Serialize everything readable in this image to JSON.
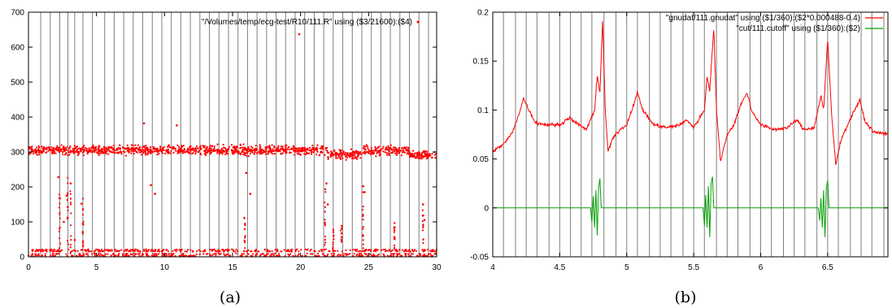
{
  "chart_data": [
    {
      "type": "scatter",
      "caption": "(a)",
      "xlim": [
        0,
        30
      ],
      "ylim": [
        0,
        700
      ],
      "x_ticks": [
        0,
        5,
        10,
        15,
        20,
        25,
        30
      ],
      "y_ticks": [
        0,
        100,
        200,
        300,
        400,
        500,
        600,
        700
      ],
      "grid": false,
      "legend_position": "top-right",
      "colors": {
        "points": "#ff0000",
        "marker_lines": "#7f7f7f"
      },
      "series": [
        {
          "name": "\"/Volumes/temp/ecg-test/R10/111.R\" using ($3/21600):($4)",
          "main_band": {
            "x_range": [
              0,
              30
            ],
            "center": 305,
            "spread": 14
          },
          "baseline_band": {
            "x_range": [
              0,
              30
            ],
            "values": [
              3,
              8,
              16,
              20
            ]
          },
          "outliers": [
            {
              "x": 19.9,
              "y": 637
            },
            {
              "x": 8.5,
              "y": 382
            },
            {
              "x": 10.9,
              "y": 376
            },
            {
              "x": 2.2,
              "y": 228
            },
            {
              "x": 2.6,
              "y": 100
            },
            {
              "x": 2.8,
              "y": 175
            },
            {
              "x": 3.1,
              "y": 210
            },
            {
              "x": 3.4,
              "y": 48
            },
            {
              "x": 3.9,
              "y": 152
            },
            {
              "x": 4.0,
              "y": 95
            },
            {
              "x": 9.0,
              "y": 205
            },
            {
              "x": 9.3,
              "y": 180
            },
            {
              "x": 16.0,
              "y": 240
            },
            {
              "x": 16.3,
              "y": 180
            },
            {
              "x": 21.9,
              "y": 210
            },
            {
              "x": 22.0,
              "y": 150
            },
            {
              "x": 24.6,
              "y": 202
            },
            {
              "x": 24.7,
              "y": 185
            },
            {
              "x": 26.9,
              "y": 55
            },
            {
              "x": 29.0,
              "y": 150
            },
            {
              "x": 29.1,
              "y": 105
            }
          ],
          "columns": [
            {
              "x": 2.3,
              "y_range": [
                20,
                200
              ]
            },
            {
              "x": 2.9,
              "y_range": [
                10,
                230
              ]
            },
            {
              "x": 3.1,
              "y_range": [
                10,
                190
              ]
            },
            {
              "x": 4.0,
              "y_range": [
                10,
                170
              ]
            },
            {
              "x": 15.9,
              "y_range": [
                15,
                120
              ]
            },
            {
              "x": 21.8,
              "y_range": [
                20,
                220
              ]
            },
            {
              "x": 22.4,
              "y_range": [
                15,
                110
              ]
            },
            {
              "x": 23.0,
              "y_range": [
                20,
                100
              ]
            },
            {
              "x": 24.6,
              "y_range": [
                20,
                210
              ]
            },
            {
              "x": 26.9,
              "y_range": [
                15,
                110
              ]
            },
            {
              "x": 29.0,
              "y_range": [
                10,
                140
              ]
            }
          ]
        }
      ],
      "vertical_markers": [
        0.9,
        1.6,
        2.3,
        2.9,
        3.4,
        4.0,
        4.7,
        5.6,
        6.3,
        7.0,
        7.7,
        8.4,
        9.1,
        9.8,
        10.5,
        11.2,
        11.9,
        12.6,
        13.3,
        14.0,
        14.7,
        15.4,
        16.1,
        16.8,
        17.5,
        18.2,
        18.9,
        19.6,
        20.3,
        21.0,
        21.7,
        22.4,
        23.1,
        23.8,
        24.5,
        25.2,
        25.9,
        26.6,
        27.3,
        28.0,
        28.7,
        29.4
      ]
    },
    {
      "type": "line",
      "caption": "(b)",
      "xlim": [
        4,
        6.95
      ],
      "ylim": [
        -0.05,
        0.2
      ],
      "x_ticks": [
        4,
        4.5,
        5,
        5.5,
        6,
        6.5
      ],
      "y_ticks": [
        -0.05,
        0,
        0.05,
        0.1,
        0.15,
        0.2
      ],
      "grid": false,
      "legend_position": "top-right",
      "series": [
        {
          "name": "\"gnudat/111.gnudat\" using ($1/360):($2*0.000488-0.4)",
          "color": "#ff0000",
          "key_points": [
            [
              4.0,
              0.058
            ],
            [
              4.05,
              0.062
            ],
            [
              4.1,
              0.068
            ],
            [
              4.15,
              0.078
            ],
            [
              4.2,
              0.098
            ],
            [
              4.23,
              0.112
            ],
            [
              4.27,
              0.1
            ],
            [
              4.32,
              0.087
            ],
            [
              4.4,
              0.085
            ],
            [
              4.5,
              0.085
            ],
            [
              4.57,
              0.092
            ],
            [
              4.62,
              0.087
            ],
            [
              4.7,
              0.08
            ],
            [
              4.76,
              0.1
            ],
            [
              4.78,
              0.135
            ],
            [
              4.8,
              0.118
            ],
            [
              4.82,
              0.192
            ],
            [
              4.84,
              0.1
            ],
            [
              4.86,
              0.058
            ],
            [
              4.9,
              0.072
            ],
            [
              4.95,
              0.08
            ],
            [
              5.0,
              0.085
            ],
            [
              5.05,
              0.105
            ],
            [
              5.08,
              0.118
            ],
            [
              5.12,
              0.1
            ],
            [
              5.2,
              0.085
            ],
            [
              5.3,
              0.082
            ],
            [
              5.4,
              0.085
            ],
            [
              5.45,
              0.09
            ],
            [
              5.5,
              0.082
            ],
            [
              5.58,
              0.1
            ],
            [
              5.6,
              0.135
            ],
            [
              5.62,
              0.12
            ],
            [
              5.65,
              0.185
            ],
            [
              5.67,
              0.1
            ],
            [
              5.7,
              0.048
            ],
            [
              5.75,
              0.075
            ],
            [
              5.8,
              0.085
            ],
            [
              5.85,
              0.105
            ],
            [
              5.9,
              0.118
            ],
            [
              5.93,
              0.1
            ],
            [
              6.0,
              0.085
            ],
            [
              6.1,
              0.08
            ],
            [
              6.2,
              0.082
            ],
            [
              6.27,
              0.09
            ],
            [
              6.32,
              0.08
            ],
            [
              6.4,
              0.082
            ],
            [
              6.45,
              0.115
            ],
            [
              6.47,
              0.1
            ],
            [
              6.5,
              0.172
            ],
            [
              6.53,
              0.095
            ],
            [
              6.56,
              0.044
            ],
            [
              6.6,
              0.07
            ],
            [
              6.65,
              0.085
            ],
            [
              6.7,
              0.1
            ],
            [
              6.74,
              0.11
            ],
            [
              6.78,
              0.088
            ],
            [
              6.85,
              0.077
            ],
            [
              6.95,
              0.076
            ]
          ]
        },
        {
          "name": "\"cut/111.cutoff\" using ($1/360):($2)",
          "color": "#00a000",
          "baseline": 0,
          "bursts": [
            {
              "x": 4.77,
              "points": [
                [
                  -0.04,
                  0.0
                ],
                [
                  -0.03,
                  -0.015
                ],
                [
                  -0.02,
                  0.012
                ],
                [
                  -0.01,
                  -0.02
                ],
                [
                  0.0,
                  0.018
                ],
                [
                  0.01,
                  -0.028
                ],
                [
                  0.02,
                  0.02
                ],
                [
                  0.03,
                  0.03
                ],
                [
                  0.04,
                  0.0
                ]
              ]
            },
            {
              "x": 5.61,
              "points": [
                [
                  -0.04,
                  0.0
                ],
                [
                  -0.03,
                  -0.018
                ],
                [
                  -0.02,
                  0.013
                ],
                [
                  -0.01,
                  -0.02
                ],
                [
                  0.0,
                  0.022
                ],
                [
                  0.01,
                  -0.03
                ],
                [
                  0.02,
                  0.025
                ],
                [
                  0.03,
                  0.032
                ],
                [
                  0.04,
                  0.0
                ]
              ]
            },
            {
              "x": 6.47,
              "points": [
                [
                  -0.04,
                  0.0
                ],
                [
                  -0.03,
                  -0.013
                ],
                [
                  -0.02,
                  0.01
                ],
                [
                  -0.01,
                  -0.02
                ],
                [
                  0.0,
                  0.018
                ],
                [
                  0.01,
                  -0.03
                ],
                [
                  0.02,
                  0.02
                ],
                [
                  0.03,
                  0.028
                ],
                [
                  0.04,
                  0.0
                ]
              ]
            }
          ]
        }
      ],
      "vertical_markers": [
        4.08,
        4.17,
        4.25,
        4.33,
        4.42,
        4.5,
        4.58,
        4.66,
        4.74,
        4.83,
        4.92,
        5.0,
        5.08,
        5.17,
        5.25,
        5.33,
        5.42,
        5.5,
        5.58,
        5.67,
        5.75,
        5.83,
        5.92,
        6.0,
        6.08,
        6.17,
        6.25,
        6.33,
        6.42,
        6.5,
        6.58,
        6.67,
        6.75,
        6.83,
        6.92
      ],
      "colors": {
        "marker_lines": "#7f7f7f"
      }
    }
  ]
}
